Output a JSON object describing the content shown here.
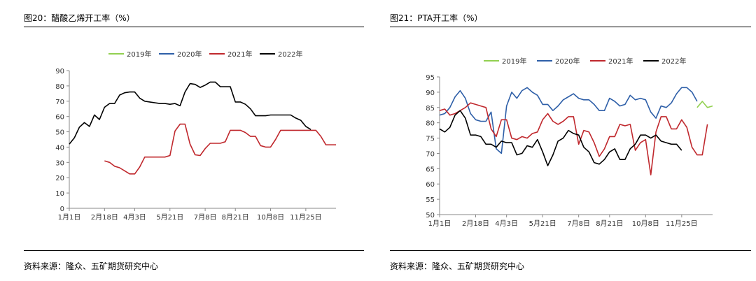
{
  "chart_data": [
    {
      "type": "line",
      "title": "图20：醋酸乙烯开工率（%）",
      "source": "资料来源：隆众、五矿期货研究中心",
      "ylim": [
        0,
        90
      ],
      "yticks": [
        0,
        10,
        20,
        30,
        40,
        50,
        60,
        70,
        80,
        90
      ],
      "xticklabels": [
        "1月1日",
        "2月18日",
        "4月3日",
        "5月21日",
        "7月8日",
        "8月21日",
        "10月8日",
        "11月25日"
      ],
      "xtick_weeks": [
        0,
        7,
        13,
        20,
        27,
        33,
        40,
        47
      ],
      "grid": false,
      "legend": "top",
      "series": [
        {
          "name": "2019年",
          "color": "#92d050",
          "values": []
        },
        {
          "name": "2020年",
          "color": "#2e5fa8",
          "values": []
        },
        {
          "name": "2021年",
          "color": "#c0282d",
          "values": [
            null,
            null,
            null,
            null,
            null,
            null,
            null,
            31,
            30,
            27.5,
            26.5,
            24.5,
            22.5,
            22.5,
            27,
            33.5,
            33.5,
            33.5,
            33.5,
            33.5,
            34.5,
            50.5,
            55,
            55,
            42,
            35,
            34.5,
            39,
            42.5,
            42.5,
            42.5,
            43.5,
            51,
            51,
            51,
            49.5,
            47,
            47,
            41,
            40,
            40,
            45,
            51,
            51,
            51,
            51,
            51,
            51,
            51,
            51,
            47,
            41.5,
            41.5,
            41.5
          ]
        },
        {
          "name": "2022年",
          "color": "#000000",
          "values": [
            42,
            46,
            53,
            56,
            53.5,
            61,
            58,
            66,
            68.5,
            68.5,
            74,
            75.5,
            76,
            76,
            72,
            70,
            69.5,
            69,
            68.5,
            68.5,
            68,
            68.5,
            67,
            76,
            81.5,
            81,
            79,
            80.5,
            82.5,
            82.5,
            79.5,
            79.5,
            79.5,
            69.5,
            69.5,
            68,
            65,
            60.5,
            60.5,
            60.5,
            61,
            61,
            61,
            61,
            61,
            59,
            57.5,
            53.5,
            51.5
          ]
        }
      ]
    },
    {
      "type": "line",
      "title": "图21：PTA开工率（%）",
      "source": "资料来源：隆众、五矿期货研究中心",
      "ylim": [
        50,
        95
      ],
      "yticks": [
        50,
        55,
        60,
        65,
        70,
        75,
        80,
        85,
        90,
        95
      ],
      "xticklabels": [
        "1月1日",
        "2月18日",
        "4月3日",
        "5月21日",
        "7月8日",
        "8月21日",
        "10月8日",
        "11月25日"
      ],
      "xtick_weeks": [
        0,
        7,
        13,
        20,
        27,
        33,
        40,
        47
      ],
      "grid": false,
      "legend": "top",
      "series": [
        {
          "name": "2019年",
          "color": "#92d050",
          "values": [
            null,
            null,
            null,
            null,
            null,
            null,
            null,
            null,
            null,
            null,
            null,
            null,
            null,
            null,
            null,
            null,
            null,
            null,
            null,
            null,
            null,
            null,
            null,
            null,
            null,
            null,
            null,
            null,
            null,
            null,
            null,
            null,
            null,
            null,
            null,
            null,
            null,
            null,
            null,
            null,
            null,
            null,
            null,
            null,
            null,
            null,
            null,
            null,
            null,
            null,
            85,
            87,
            85,
            85.5
          ]
        },
        {
          "name": "2020年",
          "color": "#2e5fa8",
          "values": [
            82.5,
            83,
            85,
            88.5,
            90.5,
            88,
            83,
            81,
            80.5,
            80.5,
            83.5,
            71.5,
            70,
            85.5,
            90,
            88,
            90.5,
            91.5,
            90,
            89,
            86,
            86,
            84,
            85.5,
            87.5,
            88.5,
            89.5,
            88,
            87.5,
            87.5,
            86,
            84,
            84,
            88,
            87,
            85.5,
            86,
            89,
            87.5,
            88,
            87.5,
            83.5,
            81.5,
            85.5,
            85,
            86.5,
            89.5,
            91.5,
            91.5,
            90,
            87
          ]
        },
        {
          "name": "2021年",
          "color": "#c0282d",
          "values": [
            84,
            84.5,
            82.5,
            83,
            84,
            85,
            86.5,
            86,
            85.5,
            85,
            78,
            75.5,
            81,
            81,
            75,
            74.5,
            75.5,
            75,
            76.5,
            77,
            81,
            83,
            80.5,
            79.5,
            80.5,
            82,
            82,
            73,
            77.5,
            77,
            73.5,
            69,
            71.5,
            75.5,
            75.5,
            79.5,
            79,
            79.5,
            71,
            73.5,
            74.5,
            63,
            77,
            82,
            82,
            78,
            78,
            81,
            78.5,
            72,
            69.5,
            69.5,
            79.5
          ]
        },
        {
          "name": "2022年",
          "color": "#000000",
          "values": [
            78,
            77,
            78.5,
            82.5,
            84,
            81.5,
            76,
            76,
            75.5,
            73,
            73,
            72,
            74,
            73.5,
            73.5,
            69.5,
            70,
            72.5,
            72,
            74.5,
            70.5,
            66,
            69.5,
            74,
            75,
            77.5,
            76.5,
            76,
            72,
            70.5,
            67,
            66.5,
            68,
            70.5,
            71.5,
            68,
            68,
            71.5,
            73,
            76,
            76,
            75,
            76,
            74,
            73.5,
            73,
            73,
            71
          ]
        }
      ]
    }
  ]
}
